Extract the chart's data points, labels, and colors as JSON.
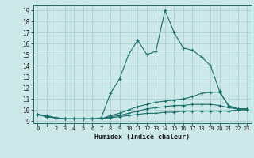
{
  "xlabel": "Humidex (Indice chaleur)",
  "xlim": [
    -0.5,
    23.5
  ],
  "ylim": [
    8.8,
    19.5
  ],
  "yticks": [
    9,
    10,
    11,
    12,
    13,
    14,
    15,
    16,
    17,
    18,
    19
  ],
  "xticks": [
    0,
    1,
    2,
    3,
    4,
    5,
    6,
    7,
    8,
    9,
    10,
    11,
    12,
    13,
    14,
    15,
    16,
    17,
    18,
    19,
    20,
    21,
    22,
    23
  ],
  "xtick_labels": [
    "0",
    "1",
    "2",
    "3",
    "4",
    "5",
    "6",
    "7",
    "8",
    "9",
    "10",
    "11",
    "12",
    "13",
    "14",
    "15",
    "16",
    "17",
    "18",
    "19",
    "20",
    "21",
    "22",
    "23"
  ],
  "background_color": "#cce8e8",
  "grid_color": "#aacfcf",
  "line_color": "#1a6e6a",
  "curves": [
    {
      "x": [
        0,
        1,
        2,
        3,
        4,
        5,
        6,
        7,
        8,
        9,
        10,
        11,
        12,
        13,
        14,
        15,
        16,
        17,
        18,
        19,
        20,
        21,
        22,
        23
      ],
      "y": [
        9.6,
        9.5,
        9.3,
        9.2,
        9.2,
        9.2,
        9.2,
        9.3,
        11.5,
        12.8,
        15.0,
        16.3,
        15.0,
        15.3,
        19.0,
        17.0,
        15.6,
        15.4,
        14.8,
        14.0,
        11.7,
        10.3,
        10.1,
        10.1
      ]
    },
    {
      "x": [
        0,
        1,
        2,
        3,
        4,
        5,
        6,
        7,
        8,
        9,
        10,
        11,
        12,
        13,
        14,
        15,
        16,
        17,
        18,
        19,
        20,
        21,
        22,
        23
      ],
      "y": [
        9.6,
        9.4,
        9.3,
        9.2,
        9.2,
        9.2,
        9.2,
        9.2,
        9.5,
        9.7,
        10.0,
        10.3,
        10.5,
        10.7,
        10.8,
        10.9,
        11.0,
        11.2,
        11.5,
        11.6,
        11.6,
        10.4,
        10.1,
        10.1
      ]
    },
    {
      "x": [
        0,
        1,
        2,
        3,
        4,
        5,
        6,
        7,
        8,
        9,
        10,
        11,
        12,
        13,
        14,
        15,
        16,
        17,
        18,
        19,
        20,
        21,
        22,
        23
      ],
      "y": [
        9.6,
        9.4,
        9.3,
        9.2,
        9.2,
        9.2,
        9.2,
        9.2,
        9.4,
        9.5,
        9.7,
        9.9,
        10.1,
        10.2,
        10.3,
        10.4,
        10.4,
        10.5,
        10.5,
        10.5,
        10.4,
        10.2,
        10.1,
        10.1
      ]
    },
    {
      "x": [
        0,
        1,
        2,
        3,
        4,
        5,
        6,
        7,
        8,
        9,
        10,
        11,
        12,
        13,
        14,
        15,
        16,
        17,
        18,
        19,
        20,
        21,
        22,
        23
      ],
      "y": [
        9.6,
        9.4,
        9.3,
        9.2,
        9.2,
        9.2,
        9.2,
        9.2,
        9.3,
        9.4,
        9.5,
        9.6,
        9.7,
        9.7,
        9.8,
        9.8,
        9.9,
        9.9,
        9.9,
        9.9,
        9.9,
        9.9,
        10.0,
        10.0
      ]
    }
  ]
}
